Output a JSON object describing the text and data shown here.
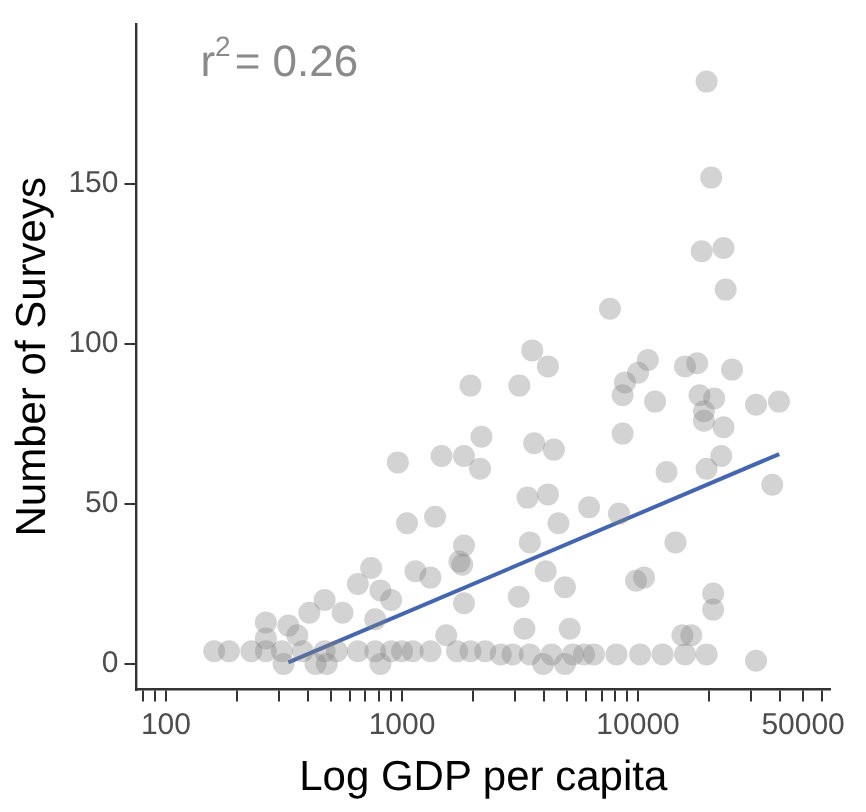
{
  "chart_data": {
    "type": "scatter",
    "xlabel": "Log GDP per capita",
    "ylabel": "Number of Surveys",
    "log": "x",
    "grid": false,
    "legend": false,
    "marker": "circle",
    "xlim": [
      75,
      65000
    ],
    "ylim": [
      -8,
      200
    ],
    "xticks": [
      {
        "value": 80,
        "label": null
      },
      {
        "value": 90,
        "label": null
      },
      100,
      {
        "value": 200,
        "label": null
      },
      {
        "value": 300,
        "label": null
      },
      {
        "value": 400,
        "label": null
      },
      {
        "value": 500,
        "label": null
      },
      {
        "value": 600,
        "label": null
      },
      {
        "value": 700,
        "label": null
      },
      {
        "value": 800,
        "label": null
      },
      {
        "value": 900,
        "label": null
      },
      1000,
      {
        "value": 2000,
        "label": null
      },
      {
        "value": 3000,
        "label": null
      },
      {
        "value": 4000,
        "label": null
      },
      {
        "value": 5000,
        "label": null
      },
      {
        "value": 6000,
        "label": null
      },
      {
        "value": 7000,
        "label": null
      },
      {
        "value": 8000,
        "label": null
      },
      {
        "value": 9000,
        "label": null
      },
      10000,
      {
        "value": 20000,
        "label": null
      },
      {
        "value": 30000,
        "label": null
      },
      {
        "value": 40000,
        "label": null
      },
      50000,
      {
        "value": 60000,
        "label": null
      }
    ],
    "yticks": [
      0,
      50,
      100,
      150
    ],
    "annotations": [
      "r$^{2}$= 0.26"
    ],
    "series": [
      {
        "color": "#808080",
        "x": [
          19500,
          20400,
          18600,
          23000,
          23500,
          7600,
          3560,
          4150,
          3140,
          11000,
          10000,
          8800,
          8600,
          11800,
          15800,
          17800,
          25000,
          18200,
          21000,
          19000,
          31600,
          39500,
          1950,
          19000,
          23000,
          3630,
          4400,
          8600,
          13200,
          19500,
          22500,
          37000,
          3400,
          4150,
          6200,
          8300,
          4600,
          3480,
          14400,
          4060,
          4900,
          3120,
          9800,
          10600,
          20800,
          20800,
          15400,
          16800,
          5130,
          3300,
          31600,
          960,
          1470,
          1830,
          2140,
          2170,
          1050,
          1380,
          1830,
          1750,
          1800,
          740,
          1140,
          1320,
          650,
          810,
          900,
          1830,
          470,
          405,
          560,
          265,
          330,
          360,
          770,
          1540,
          265,
          160,
          185,
          230,
          265,
          310,
          380,
          470,
          530,
          650,
          770,
          900,
          1000,
          1110,
          1320,
          1710,
          1950,
          2250,
          315,
          430,
          480,
          810,
          2620,
          2940,
          3480,
          4300,
          5300,
          6500,
          8100,
          10200,
          12700,
          15800,
          19500,
          5900,
          3960,
          4900
        ],
        "values": [
          182,
          152,
          129,
          130,
          117,
          111,
          98,
          93,
          87,
          95,
          91,
          88,
          84,
          82,
          93,
          94,
          92,
          84,
          83,
          79,
          81,
          82,
          87,
          76,
          74,
          69,
          67,
          72,
          60,
          61,
          65,
          56,
          52,
          53,
          49,
          47,
          44,
          38,
          38,
          29,
          24,
          21,
          26,
          27,
          22,
          17,
          9,
          9,
          11,
          11,
          1,
          63,
          65,
          65,
          61,
          71,
          44,
          46,
          37,
          32,
          31,
          30,
          29,
          27,
          25,
          23,
          20,
          19,
          20,
          16,
          16,
          13,
          12,
          9,
          14,
          9,
          8,
          4,
          4,
          4,
          4,
          4,
          4,
          4,
          4,
          4,
          4,
          4,
          4,
          4,
          4,
          4,
          4,
          4,
          0,
          0,
          0,
          0,
          3,
          3,
          3,
          3,
          3,
          3,
          3,
          3,
          3,
          3,
          3,
          3,
          0,
          0
        ]
      },
      {
        "type": "line",
        "color": "#4466b0",
        "marker": "none",
        "x": [
          330,
          39600
        ],
        "values": [
          0.5,
          65.6
        ]
      }
    ]
  }
}
